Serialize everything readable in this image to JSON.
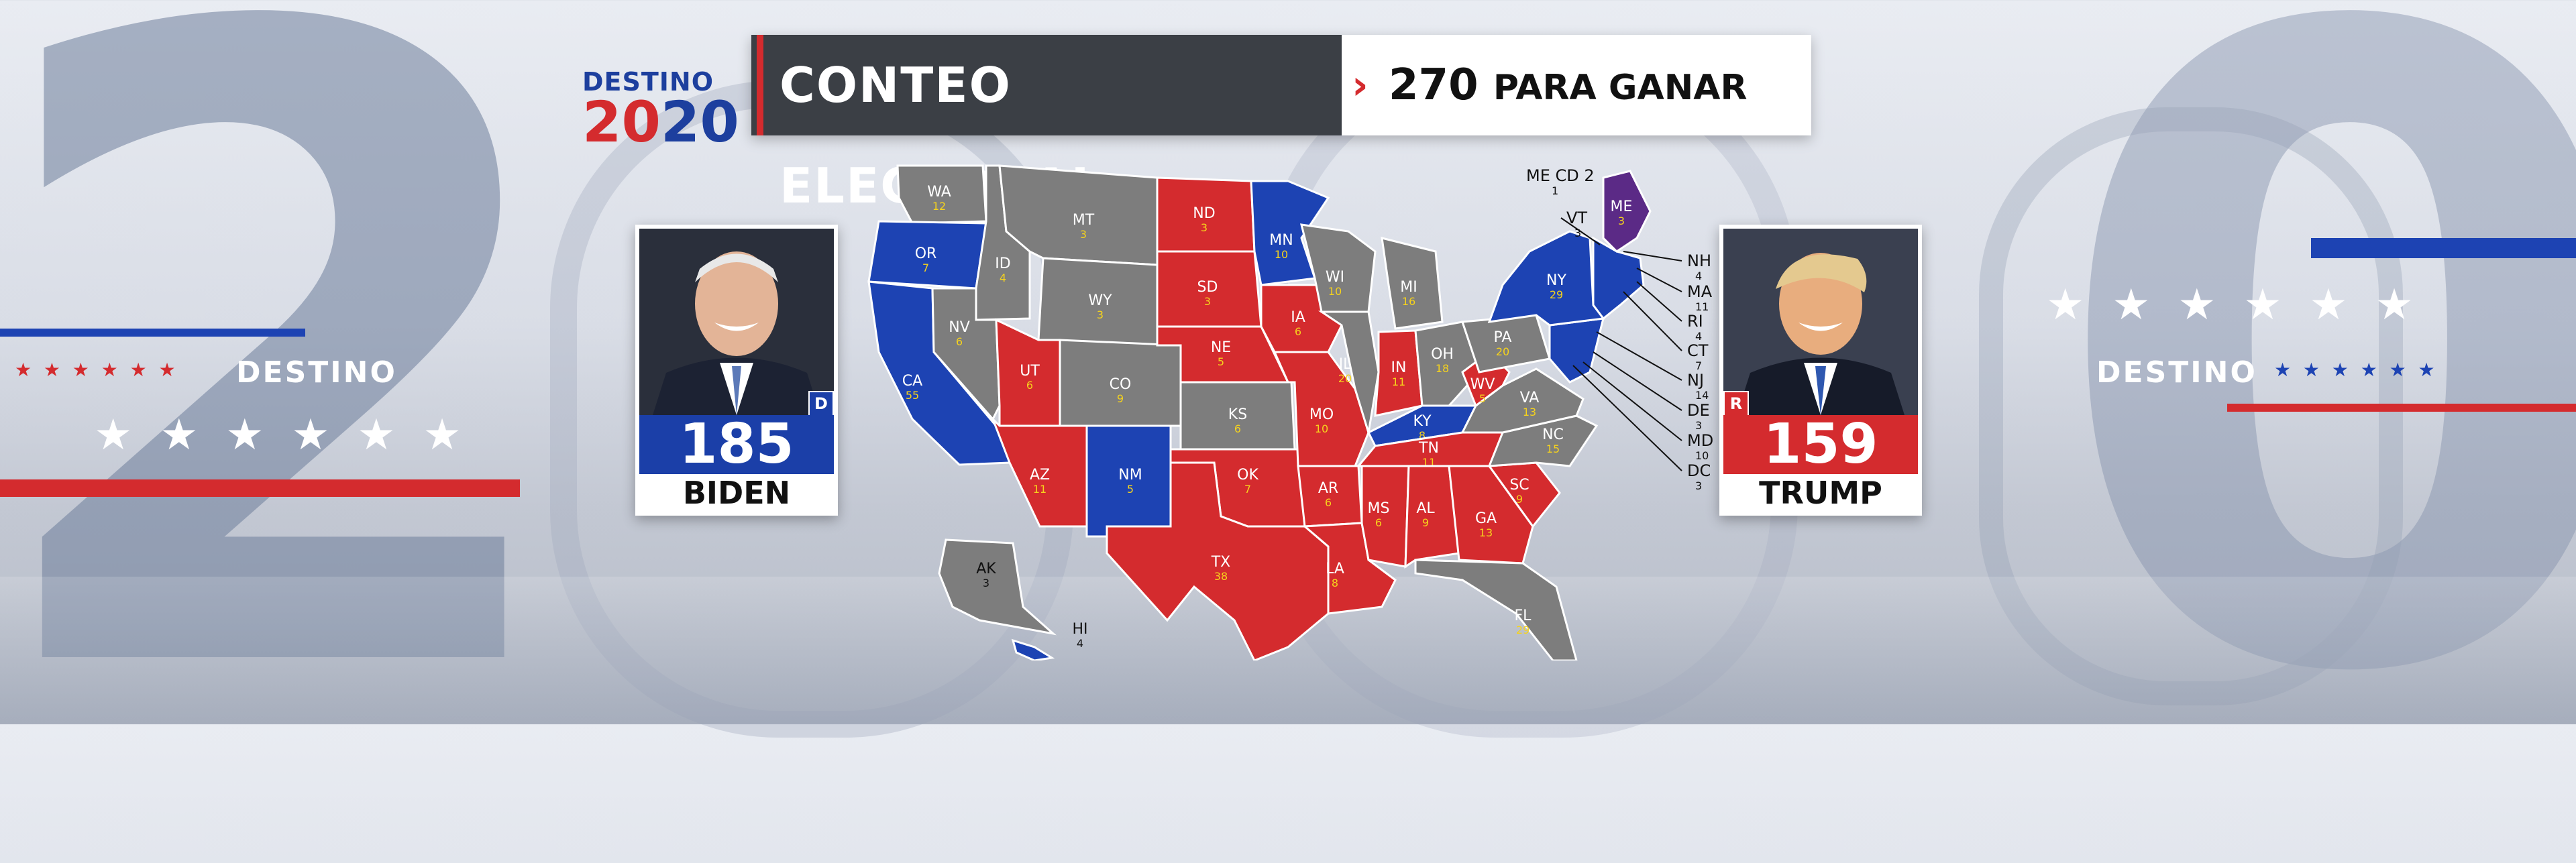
{
  "header": {
    "logo_top": "DESTINO",
    "logo_year_a": "20",
    "logo_year_b": "20",
    "title": "CONTEO ELECTORAL",
    "chevron": "›",
    "goal_number": "270",
    "goal_text": "PARA GANAR"
  },
  "side": {
    "destino_left": "DESTINO",
    "destino_right": "DESTINO"
  },
  "candidates": {
    "biden": {
      "name": "BIDEN",
      "votes": "185",
      "party": "D",
      "color": "#1b3fa8"
    },
    "trump": {
      "name": "TRUMP",
      "votes": "159",
      "party": "R",
      "color": "#d42b2e"
    }
  },
  "colors": {
    "dem": "#1d43b3",
    "rep": "#d42b2e",
    "undecided": "#7d7d7d",
    "split": "#5b2a86",
    "labels": "#f6d31c"
  },
  "map": {
    "states": [
      {
        "abbr": "WA",
        "ev": "12",
        "status": "undecided"
      },
      {
        "abbr": "OR",
        "ev": "7",
        "status": "dem"
      },
      {
        "abbr": "CA",
        "ev": "55",
        "status": "dem"
      },
      {
        "abbr": "ID",
        "ev": "4",
        "status": "undecided"
      },
      {
        "abbr": "NV",
        "ev": "6",
        "status": "undecided"
      },
      {
        "abbr": "MT",
        "ev": "3",
        "status": "undecided"
      },
      {
        "abbr": "WY",
        "ev": "3",
        "status": "undecided"
      },
      {
        "abbr": "UT",
        "ev": "6",
        "status": "rep"
      },
      {
        "abbr": "AZ",
        "ev": "11",
        "status": "rep"
      },
      {
        "abbr": "CO",
        "ev": "9",
        "status": "undecided"
      },
      {
        "abbr": "NM",
        "ev": "5",
        "status": "dem"
      },
      {
        "abbr": "ND",
        "ev": "3",
        "status": "rep"
      },
      {
        "abbr": "SD",
        "ev": "3",
        "status": "rep"
      },
      {
        "abbr": "NE",
        "ev": "5",
        "status": "rep"
      },
      {
        "abbr": "KS",
        "ev": "6",
        "status": "undecided"
      },
      {
        "abbr": "OK",
        "ev": "7",
        "status": "rep"
      },
      {
        "abbr": "TX",
        "ev": "38",
        "status": "rep"
      },
      {
        "abbr": "MN",
        "ev": "10",
        "status": "dem"
      },
      {
        "abbr": "IA",
        "ev": "6",
        "status": "rep"
      },
      {
        "abbr": "MO",
        "ev": "10",
        "status": "rep"
      },
      {
        "abbr": "AR",
        "ev": "6",
        "status": "rep"
      },
      {
        "abbr": "LA",
        "ev": "8",
        "status": "rep"
      },
      {
        "abbr": "WI",
        "ev": "10",
        "status": "undecided"
      },
      {
        "abbr": "IL",
        "ev": "20",
        "status": "undecided"
      },
      {
        "abbr": "MI",
        "ev": "16",
        "status": "undecided"
      },
      {
        "abbr": "IN",
        "ev": "11",
        "status": "rep"
      },
      {
        "abbr": "OH",
        "ev": "18",
        "status": "undecided"
      },
      {
        "abbr": "KY",
        "ev": "8",
        "status": "dem"
      },
      {
        "abbr": "TN",
        "ev": "11",
        "status": "rep"
      },
      {
        "abbr": "MS",
        "ev": "6",
        "status": "rep"
      },
      {
        "abbr": "AL",
        "ev": "9",
        "status": "rep"
      },
      {
        "abbr": "GA",
        "ev": "13",
        "status": "rep"
      },
      {
        "abbr": "FL",
        "ev": "29",
        "status": "undecided"
      },
      {
        "abbr": "SC",
        "ev": "9",
        "status": "rep"
      },
      {
        "abbr": "NC",
        "ev": "15",
        "status": "undecided"
      },
      {
        "abbr": "VA",
        "ev": "13",
        "status": "undecided"
      },
      {
        "abbr": "WV",
        "ev": "5",
        "status": "rep"
      },
      {
        "abbr": "PA",
        "ev": "20",
        "status": "undecided"
      },
      {
        "abbr": "NY",
        "ev": "29",
        "status": "dem"
      },
      {
        "abbr": "ME",
        "ev": "3",
        "status": "split"
      },
      {
        "abbr": "AK",
        "ev": "3",
        "status": "undecided"
      },
      {
        "abbr": "HI",
        "ev": "4",
        "status": "dem"
      }
    ],
    "callouts": [
      {
        "abbr": "ME CD",
        "ev": "2",
        "sub": "1"
      },
      {
        "abbr": "VT",
        "ev": "3"
      },
      {
        "abbr": "NH",
        "ev": "4"
      },
      {
        "abbr": "MA",
        "ev": "11"
      },
      {
        "abbr": "RI",
        "ev": "4"
      },
      {
        "abbr": "CT",
        "ev": "7"
      },
      {
        "abbr": "NJ",
        "ev": "14"
      },
      {
        "abbr": "DE",
        "ev": "3"
      },
      {
        "abbr": "MD",
        "ev": "10"
      },
      {
        "abbr": "DC",
        "ev": "3"
      }
    ]
  }
}
